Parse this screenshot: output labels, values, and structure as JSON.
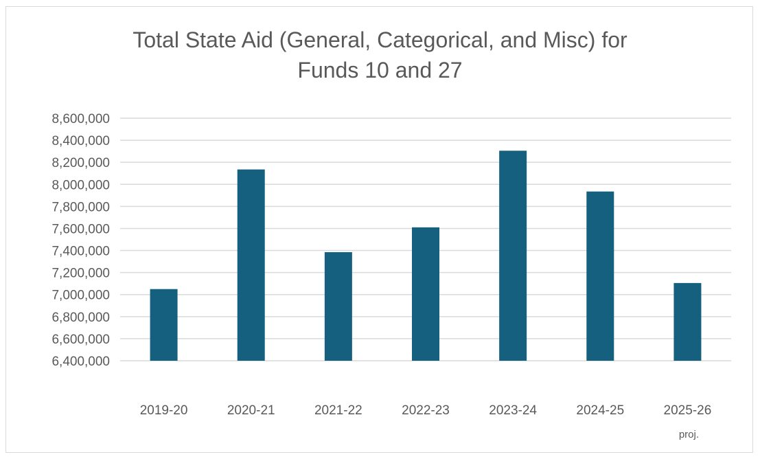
{
  "chart_data": {
    "type": "bar",
    "title_lines": [
      "Total State Aid (General, Categorical, and Misc) for",
      "Funds 10 and 27"
    ],
    "categories": [
      "2019-20",
      "2020-21",
      "2021-22",
      "2022-23",
      "2023-24",
      "2024-25",
      "2025-26"
    ],
    "category_notes": [
      "",
      "",
      "",
      "",
      "",
      "",
      "proj."
    ],
    "series": [
      {
        "values": [
          7050000,
          8135000,
          7385000,
          7610000,
          8305000,
          7935000,
          7105000
        ]
      }
    ],
    "ylim": [
      6400000,
      8600000
    ],
    "ytick_step": 200000,
    "ytick_labels": [
      "6,400,000",
      "6,600,000",
      "6,800,000",
      "7,000,000",
      "7,200,000",
      "7,400,000",
      "7,600,000",
      "7,800,000",
      "8,000,000",
      "8,200,000",
      "8,400,000",
      "8,600,000"
    ],
    "grid": true,
    "legend": "none",
    "colors": {
      "bar": "#16607f",
      "grid": "#d9d9d9",
      "text": "#595959"
    }
  }
}
